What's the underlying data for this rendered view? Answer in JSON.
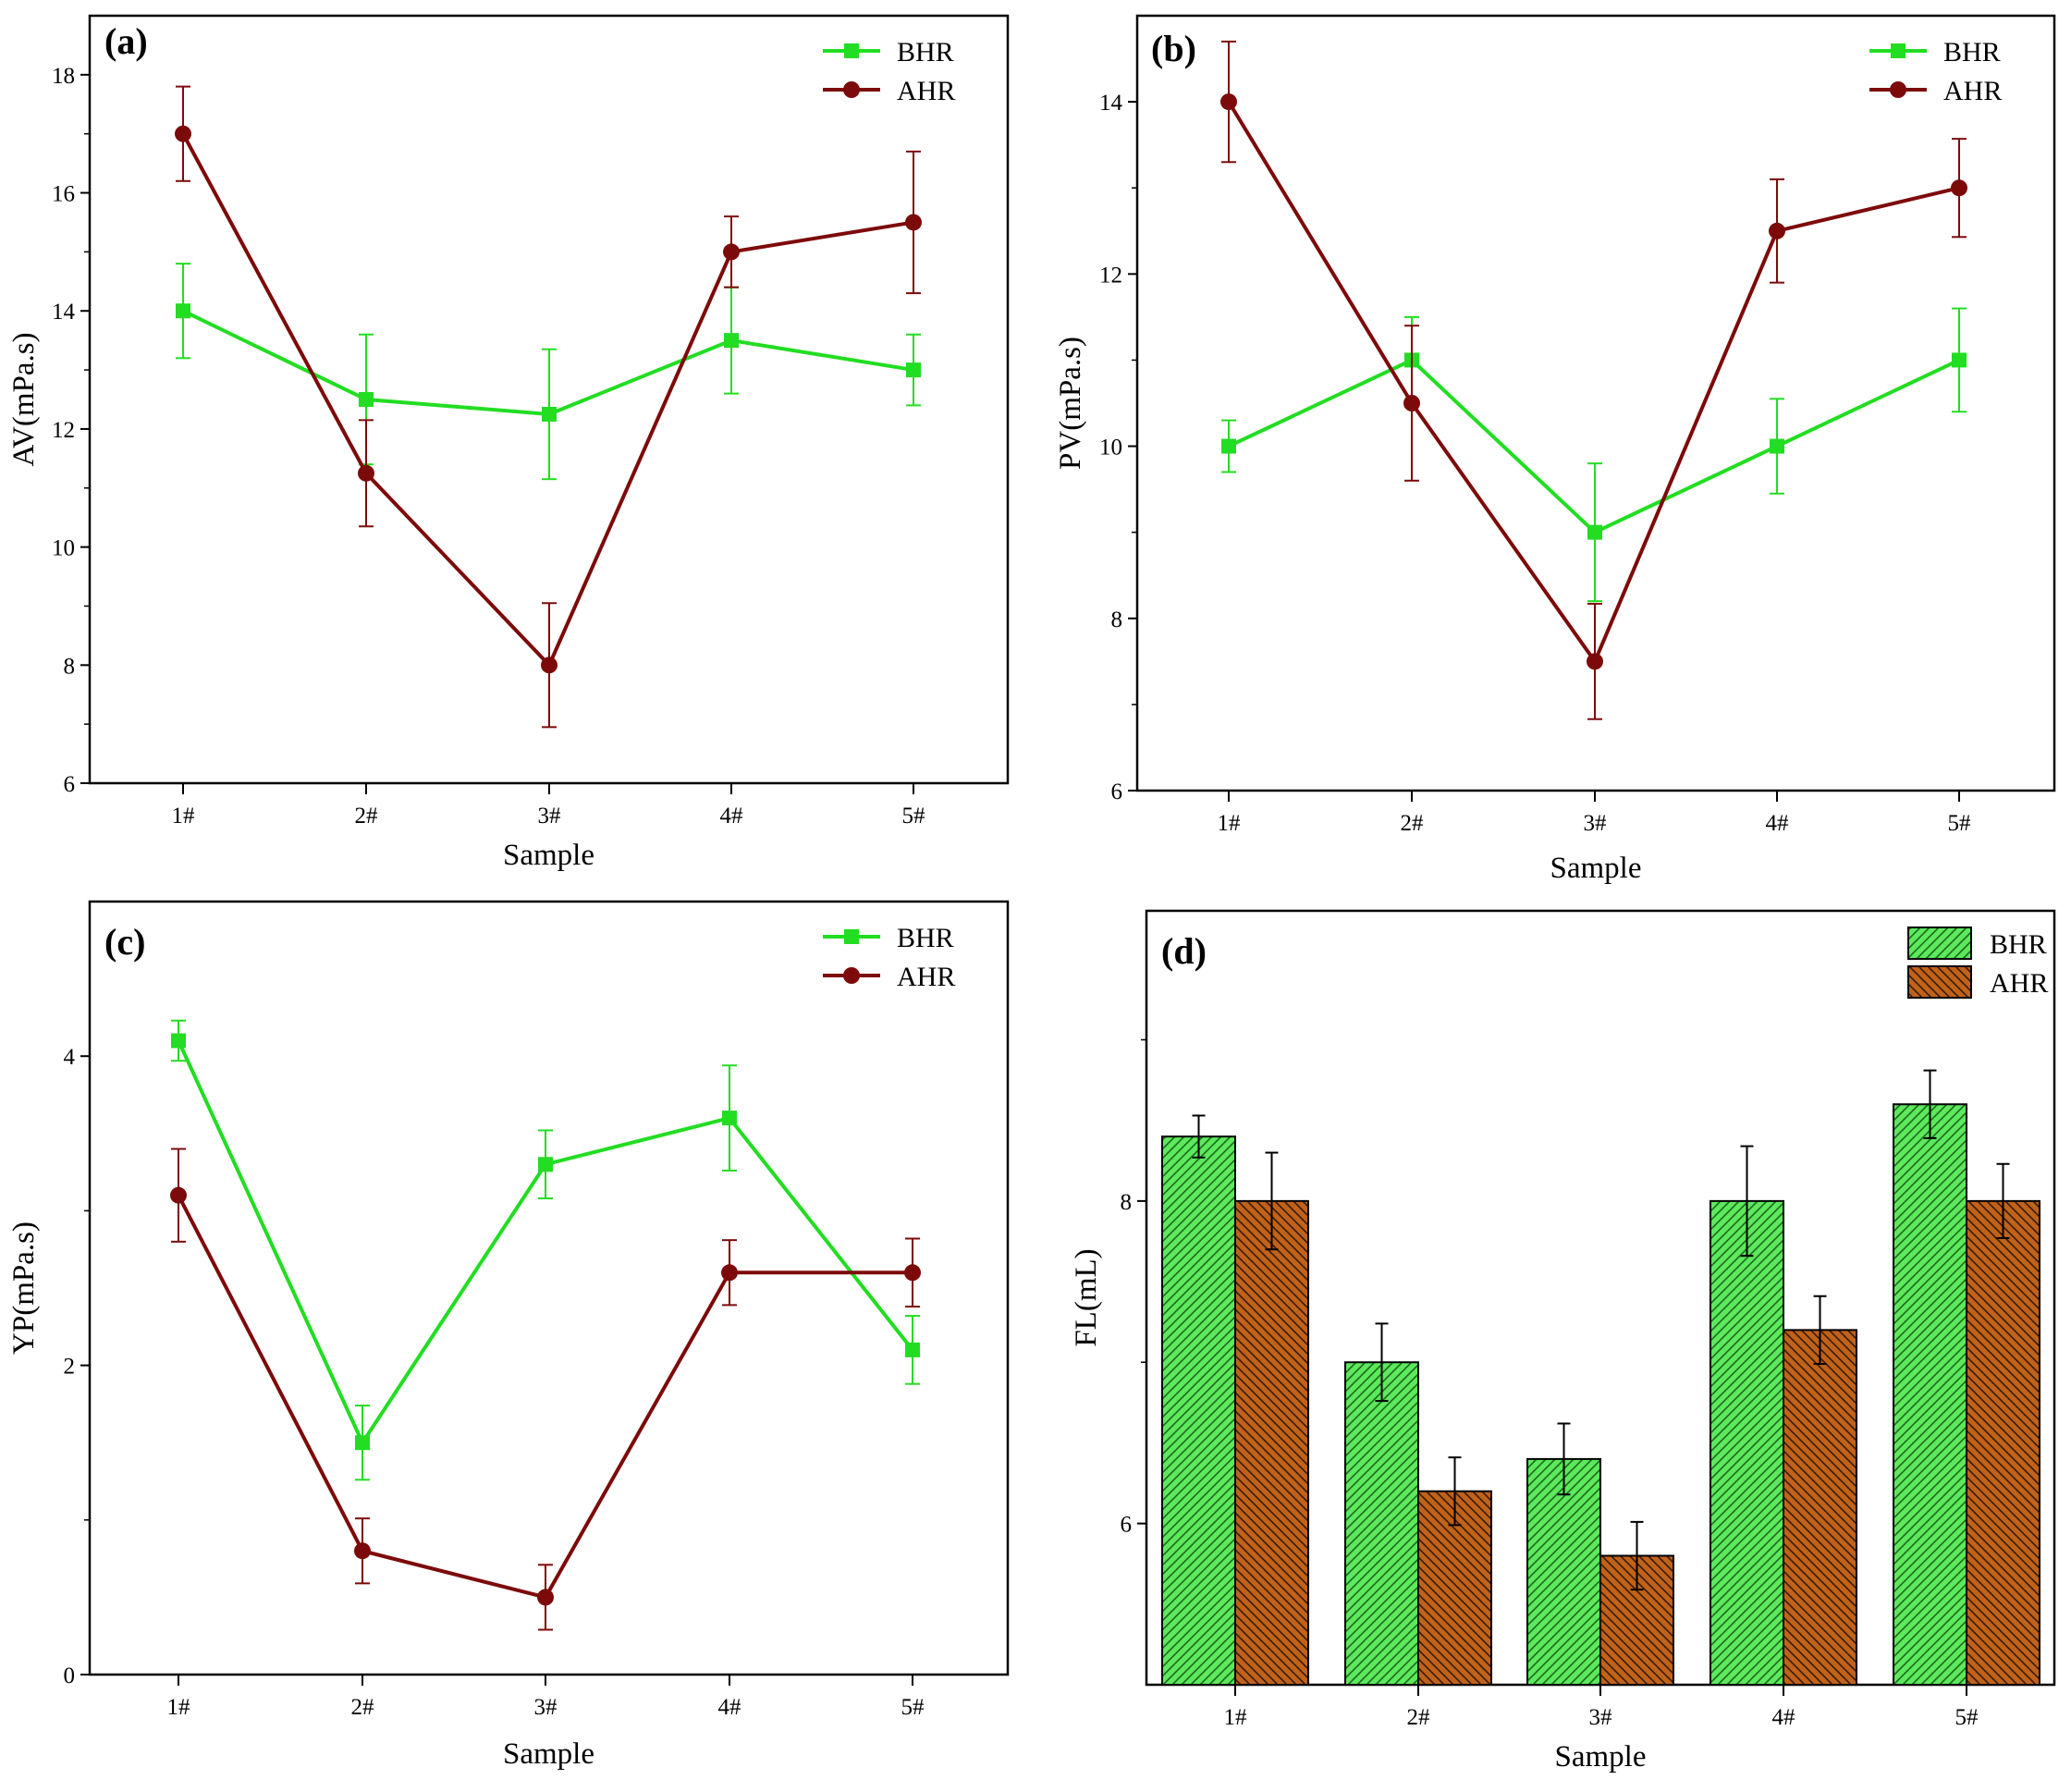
{
  "colors": {
    "bhr": "#22dd22",
    "ahr": "#7d0a0a",
    "ahr_bar": "#c0621a",
    "axis": "#000000"
  },
  "chart_data": [
    {
      "panel": "(a)",
      "type": "line",
      "xlabel": "Sample",
      "ylabel": "AV(mPa.s)",
      "categories": [
        "1#",
        "2#",
        "3#",
        "4#",
        "5#"
      ],
      "ylim": [
        6,
        19
      ],
      "yticks": [
        6,
        8,
        10,
        12,
        14,
        16,
        18
      ],
      "legend_position": "top-right",
      "series": [
        {
          "name": "BHR",
          "marker": "square",
          "values": [
            14,
            12.5,
            12.25,
            13.5,
            13
          ],
          "errors": [
            0.8,
            1.1,
            1.1,
            0.9,
            0.6
          ]
        },
        {
          "name": "AHR",
          "marker": "circle",
          "values": [
            17,
            11.25,
            8,
            15,
            15.5
          ],
          "errors": [
            0.8,
            0.9,
            1.05,
            0.6,
            1.2
          ]
        }
      ]
    },
    {
      "panel": "(b)",
      "type": "line",
      "xlabel": "Sample",
      "ylabel": "PV(mPa.s)",
      "categories": [
        "1#",
        "2#",
        "3#",
        "4#",
        "5#"
      ],
      "ylim": [
        6,
        15
      ],
      "yticks": [
        6,
        8,
        10,
        12,
        14
      ],
      "legend_position": "top-right",
      "series": [
        {
          "name": "BHR",
          "marker": "square",
          "values": [
            10,
            11,
            9,
            10,
            11
          ],
          "errors": [
            0.3,
            0.5,
            0.8,
            0.55,
            0.6
          ]
        },
        {
          "name": "AHR",
          "marker": "circle",
          "values": [
            14,
            10.5,
            7.5,
            12.5,
            13
          ],
          "errors": [
            0.7,
            0.9,
            0.67,
            0.6,
            0.57
          ]
        }
      ]
    },
    {
      "panel": "(c)",
      "type": "line",
      "xlabel": "Sample",
      "ylabel": "YP(mPa.s)",
      "categories": [
        "1#",
        "2#",
        "3#",
        "4#",
        "5#"
      ],
      "ylim": [
        0,
        5
      ],
      "yticks": [
        0,
        2,
        4
      ],
      "legend_position": "top-right",
      "series": [
        {
          "name": "BHR",
          "marker": "square",
          "values": [
            4.1,
            1.5,
            3.3,
            3.6,
            2.1
          ],
          "errors": [
            0.13,
            0.24,
            0.22,
            0.34,
            0.22
          ]
        },
        {
          "name": "AHR",
          "marker": "circle",
          "values": [
            3.1,
            0.8,
            0.5,
            2.6,
            2.6
          ],
          "errors": [
            0.3,
            0.21,
            0.21,
            0.21,
            0.22
          ]
        }
      ]
    },
    {
      "panel": "(d)",
      "type": "bar",
      "xlabel": "Sample",
      "ylabel": "FL(mL)",
      "categories": [
        "1#",
        "2#",
        "3#",
        "4#",
        "5#"
      ],
      "ylim": [
        5,
        9.8
      ],
      "yticks": [
        6,
        8
      ],
      "legend_position": "top-right",
      "series": [
        {
          "name": "BHR",
          "values": [
            8.4,
            7.0,
            6.4,
            8.0,
            8.6
          ],
          "errors": [
            0.13,
            0.24,
            0.22,
            0.34,
            0.21
          ]
        },
        {
          "name": "AHR",
          "values": [
            8.0,
            6.2,
            5.8,
            7.2,
            8.0
          ],
          "errors": [
            0.3,
            0.21,
            0.21,
            0.21,
            0.23
          ]
        }
      ]
    }
  ]
}
